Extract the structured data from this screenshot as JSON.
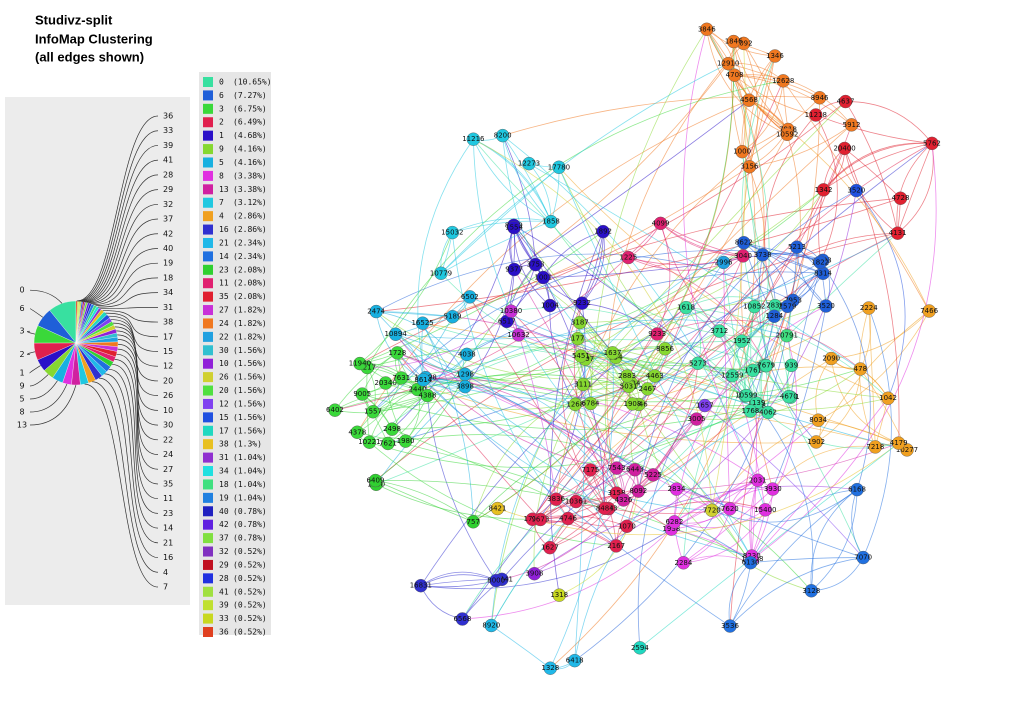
{
  "title": [
    "Studivz-split",
    "InfoMap Clustering",
    "(all edges shown)"
  ],
  "legend": [
    {
      "cluster": "0",
      "share": 10.65,
      "share_label": "(10.65%)",
      "color": "#38e0a0"
    },
    {
      "cluster": "6",
      "share": 7.27,
      "share_label": "(7.27%)",
      "color": "#1f5fd8"
    },
    {
      "cluster": "3",
      "share": 6.75,
      "share_label": "(6.75%)",
      "color": "#3ad83a"
    },
    {
      "cluster": "2",
      "share": 6.49,
      "share_label": "(6.49%)",
      "color": "#e0204e"
    },
    {
      "cluster": "1",
      "share": 4.68,
      "share_label": "(4.68%)",
      "color": "#2a10c8"
    },
    {
      "cluster": "9",
      "share": 4.16,
      "share_label": "(4.16%)",
      "color": "#86d830"
    },
    {
      "cluster": "5",
      "share": 4.16,
      "share_label": "(4.16%)",
      "color": "#18b0e0"
    },
    {
      "cluster": "8",
      "share": 3.38,
      "share_label": "(3.38%)",
      "color": "#e030e0"
    },
    {
      "cluster": "13",
      "share": 3.38,
      "share_label": "(3.38%)",
      "color": "#d020a0"
    },
    {
      "cluster": "7",
      "share": 3.12,
      "share_label": "(3.12%)",
      "color": "#20c8e0"
    },
    {
      "cluster": "4",
      "share": 2.86,
      "share_label": "(2.86%)",
      "color": "#f0a020"
    },
    {
      "cluster": "16",
      "share": 2.86,
      "share_label": "(2.86%)",
      "color": "#3030d0"
    },
    {
      "cluster": "21",
      "share": 2.34,
      "share_label": "(2.34%)",
      "color": "#20b8e8"
    },
    {
      "cluster": "14",
      "share": 2.34,
      "share_label": "(2.34%)",
      "color": "#2070e0"
    },
    {
      "cluster": "23",
      "share": 2.08,
      "share_label": "(2.08%)",
      "color": "#30d030"
    },
    {
      "cluster": "11",
      "share": 2.08,
      "share_label": "(2.08%)",
      "color": "#e02070"
    },
    {
      "cluster": "35",
      "share": 2.08,
      "share_label": "(2.08%)",
      "color": "#e02030"
    },
    {
      "cluster": "27",
      "share": 1.82,
      "share_label": "(1.82%)",
      "color": "#c830d8"
    },
    {
      "cluster": "24",
      "share": 1.82,
      "share_label": "(1.82%)",
      "color": "#f07820"
    },
    {
      "cluster": "22",
      "share": 1.82,
      "share_label": "(1.82%)",
      "color": "#20a0e0"
    },
    {
      "cluster": "30",
      "share": 1.56,
      "share_label": "(1.56%)",
      "color": "#30c0d0"
    },
    {
      "cluster": "10",
      "share": 1.56,
      "share_label": "(1.56%)",
      "color": "#9020d8"
    },
    {
      "cluster": "26",
      "share": 1.56,
      "share_label": "(1.56%)",
      "color": "#d0d030"
    },
    {
      "cluster": "20",
      "share": 1.56,
      "share_label": "(1.56%)",
      "color": "#50e040"
    },
    {
      "cluster": "12",
      "share": 1.56,
      "share_label": "(1.56%)",
      "color": "#8040f0"
    },
    {
      "cluster": "15",
      "share": 1.56,
      "share_label": "(1.56%)",
      "color": "#2050e0"
    },
    {
      "cluster": "17",
      "share": 1.56,
      "share_label": "(1.56%)",
      "color": "#20d8c0"
    },
    {
      "cluster": "38",
      "share": 1.3,
      "share_label": "(1.3%)",
      "color": "#e8c020"
    },
    {
      "cluster": "31",
      "share": 1.04,
      "share_label": "(1.04%)",
      "color": "#9030d0"
    },
    {
      "cluster": "34",
      "share": 1.04,
      "share_label": "(1.04%)",
      "color": "#20e0e0"
    },
    {
      "cluster": "18",
      "share": 1.04,
      "share_label": "(1.04%)",
      "color": "#40e080"
    },
    {
      "cluster": "19",
      "share": 1.04,
      "share_label": "(1.04%)",
      "color": "#2080e0"
    },
    {
      "cluster": "40",
      "share": 0.78,
      "share_label": "(0.78%)",
      "color": "#2020c0"
    },
    {
      "cluster": "42",
      "share": 0.78,
      "share_label": "(0.78%)",
      "color": "#6020e0"
    },
    {
      "cluster": "37",
      "share": 0.78,
      "share_label": "(0.78%)",
      "color": "#80e040"
    },
    {
      "cluster": "32",
      "share": 0.52,
      "share_label": "(0.52%)",
      "color": "#8030c0"
    },
    {
      "cluster": "29",
      "share": 0.52,
      "share_label": "(0.52%)",
      "color": "#c01020"
    },
    {
      "cluster": "28",
      "share": 0.52,
      "share_label": "(0.52%)",
      "color": "#2030e0"
    },
    {
      "cluster": "41",
      "share": 0.52,
      "share_label": "(0.52%)",
      "color": "#a0e040"
    },
    {
      "cluster": "39",
      "share": 0.52,
      "share_label": "(0.52%)",
      "color": "#c0e030"
    },
    {
      "cluster": "33",
      "share": 0.52,
      "share_label": "(0.52%)",
      "color": "#c8d820"
    },
    {
      "cluster": "36",
      "share": 0.52,
      "share_label": "(0.52%)",
      "color": "#e04020"
    }
  ],
  "nodes": [
    {
      "label": "3846",
      "cluster": "24"
    },
    {
      "label": "5912",
      "cluster": "24"
    },
    {
      "label": "12628",
      "cluster": "24"
    },
    {
      "label": "1346",
      "cluster": "24"
    },
    {
      "label": "7918",
      "cluster": "24"
    },
    {
      "label": "3092",
      "cluster": "24"
    },
    {
      "label": "8946",
      "cluster": "24"
    },
    {
      "label": "4708",
      "cluster": "24"
    },
    {
      "label": "4568",
      "cluster": "24"
    },
    {
      "label": "3156",
      "cluster": "24"
    },
    {
      "label": "1000",
      "cluster": "24"
    },
    {
      "label": "1846",
      "cluster": "24"
    },
    {
      "label": "12910",
      "cluster": "24"
    },
    {
      "label": "10592",
      "cluster": "24"
    },
    {
      "label": "1902",
      "cluster": "4"
    },
    {
      "label": "1042",
      "cluster": "4"
    },
    {
      "label": "10277",
      "cluster": "4"
    },
    {
      "label": "4179",
      "cluster": "4"
    },
    {
      "label": "7466",
      "cluster": "4"
    },
    {
      "label": "2090",
      "cluster": "4"
    },
    {
      "label": "2224",
      "cluster": "4"
    },
    {
      "label": "8034",
      "cluster": "4"
    },
    {
      "label": "478",
      "cluster": "4"
    },
    {
      "label": "7218",
      "cluster": "4"
    },
    {
      "label": "4728",
      "cluster": "35"
    },
    {
      "label": "20400",
      "cluster": "35"
    },
    {
      "label": "11218",
      "cluster": "35"
    },
    {
      "label": "5762",
      "cluster": "35"
    },
    {
      "label": "1342",
      "cluster": "35"
    },
    {
      "label": "4637",
      "cluster": "35"
    },
    {
      "label": "4131",
      "cluster": "35"
    },
    {
      "label": "883",
      "cluster": "0"
    },
    {
      "label": "4078",
      "cluster": "0"
    },
    {
      "label": "5273",
      "cluster": "0"
    },
    {
      "label": "1139",
      "cluster": "0"
    },
    {
      "label": "4351",
      "cluster": "0"
    },
    {
      "label": "1768",
      "cluster": "0"
    },
    {
      "label": "939",
      "cluster": "0"
    },
    {
      "label": "2836",
      "cluster": "0"
    },
    {
      "label": "1952",
      "cluster": "0"
    },
    {
      "label": "3340",
      "cluster": "0"
    },
    {
      "label": "4062",
      "cluster": "0"
    },
    {
      "label": "10599",
      "cluster": "0"
    },
    {
      "label": "12559",
      "cluster": "0"
    },
    {
      "label": "7679",
      "cluster": "0"
    },
    {
      "label": "3712",
      "cluster": "0"
    },
    {
      "label": "1618",
      "cluster": "0"
    },
    {
      "label": "4670",
      "cluster": "0"
    },
    {
      "label": "10852",
      "cluster": "0"
    },
    {
      "label": "1761",
      "cluster": "0"
    },
    {
      "label": "5446",
      "cluster": "9"
    },
    {
      "label": "6784",
      "cluster": "9"
    },
    {
      "label": "6024",
      "cluster": "9"
    },
    {
      "label": "5031",
      "cluster": "9"
    },
    {
      "label": "1268",
      "cluster": "9"
    },
    {
      "label": "934",
      "cluster": "9"
    },
    {
      "label": "177",
      "cluster": "9"
    },
    {
      "label": "3111",
      "cluster": "9"
    },
    {
      "label": "4463",
      "cluster": "9"
    },
    {
      "label": "1908",
      "cluster": "9"
    },
    {
      "label": "2883",
      "cluster": "9"
    },
    {
      "label": "8856",
      "cluster": "9"
    },
    {
      "label": "2097",
      "cluster": "9"
    },
    {
      "label": "2467",
      "cluster": "9"
    },
    {
      "label": "5451",
      "cluster": "9"
    },
    {
      "label": "1637",
      "cluster": "9"
    },
    {
      "label": "3187",
      "cluster": "9"
    },
    {
      "label": "1001",
      "cluster": "1"
    },
    {
      "label": "8610",
      "cluster": "1"
    },
    {
      "label": "1554",
      "cluster": "1"
    },
    {
      "label": "6517",
      "cluster": "1"
    },
    {
      "label": "1892",
      "cluster": "1"
    },
    {
      "label": "9377",
      "cluster": "1"
    },
    {
      "label": "1004",
      "cluster": "1"
    },
    {
      "label": "3753",
      "cluster": "1"
    },
    {
      "label": "9232",
      "cluster": "1"
    },
    {
      "label": "8314",
      "cluster": "6"
    },
    {
      "label": "9593",
      "cluster": "6"
    },
    {
      "label": "5213",
      "cluster": "6"
    },
    {
      "label": "7953",
      "cluster": "6"
    },
    {
      "label": "8622",
      "cluster": "6"
    },
    {
      "label": "3520",
      "cluster": "6"
    },
    {
      "label": "1822",
      "cluster": "6"
    },
    {
      "label": "1284",
      "cluster": "6"
    },
    {
      "label": "3738",
      "cluster": "6"
    },
    {
      "label": "2579",
      "cluster": "6"
    },
    {
      "label": "10221",
      "cluster": "3"
    },
    {
      "label": "20340",
      "cluster": "3"
    },
    {
      "label": "9005",
      "cluster": "3"
    },
    {
      "label": "4378",
      "cluster": "3"
    },
    {
      "label": "7621",
      "cluster": "3"
    },
    {
      "label": "2440",
      "cluster": "3"
    },
    {
      "label": "1557",
      "cluster": "3"
    },
    {
      "label": "4388",
      "cluster": "3"
    },
    {
      "label": "1728",
      "cluster": "3"
    },
    {
      "label": "7631",
      "cluster": "3"
    },
    {
      "label": "2498",
      "cluster": "3"
    },
    {
      "label": "6217",
      "cluster": "3"
    },
    {
      "label": "6402",
      "cluster": "3"
    },
    {
      "label": "1980",
      "cluster": "3"
    },
    {
      "label": "11940",
      "cluster": "3"
    },
    {
      "label": "1735",
      "cluster": "2"
    },
    {
      "label": "1070",
      "cluster": "2"
    },
    {
      "label": "2167",
      "cluster": "2"
    },
    {
      "label": "1627",
      "cluster": "2"
    },
    {
      "label": "3836",
      "cluster": "2"
    },
    {
      "label": "4746",
      "cluster": "2"
    },
    {
      "label": "3983",
      "cluster": "2"
    },
    {
      "label": "8484",
      "cluster": "2"
    },
    {
      "label": "7175",
      "cluster": "2"
    },
    {
      "label": "3158",
      "cluster": "2"
    },
    {
      "label": "9673",
      "cluster": "2"
    },
    {
      "label": "10361",
      "cluster": "2"
    },
    {
      "label": "16598",
      "cluster": "5"
    },
    {
      "label": "6502",
      "cluster": "5"
    },
    {
      "label": "2474",
      "cluster": "5"
    },
    {
      "label": "16525",
      "cluster": "5"
    },
    {
      "label": "1298",
      "cluster": "5"
    },
    {
      "label": "8614",
      "cluster": "5"
    },
    {
      "label": "10894",
      "cluster": "5"
    },
    {
      "label": "4038",
      "cluster": "5"
    },
    {
      "label": "5189",
      "cluster": "5"
    },
    {
      "label": "3898",
      "cluster": "5"
    },
    {
      "label": "2031",
      "cluster": "8"
    },
    {
      "label": "2284",
      "cluster": "8"
    },
    {
      "label": "2834",
      "cluster": "8"
    },
    {
      "label": "15400",
      "cluster": "8"
    },
    {
      "label": "7620",
      "cluster": "8"
    },
    {
      "label": "10498",
      "cluster": "8"
    },
    {
      "label": "1938",
      "cluster": "8"
    },
    {
      "label": "3930",
      "cluster": "8"
    },
    {
      "label": "6282",
      "cluster": "8"
    },
    {
      "label": "8230",
      "cluster": "8"
    },
    {
      "label": "6443",
      "cluster": "13"
    },
    {
      "label": "7543",
      "cluster": "13"
    },
    {
      "label": "5225",
      "cluster": "13"
    },
    {
      "label": "4326",
      "cluster": "13"
    },
    {
      "label": "8092",
      "cluster": "13"
    },
    {
      "label": "3005",
      "cluster": "13"
    },
    {
      "label": "15032",
      "cluster": "7"
    },
    {
      "label": "17780",
      "cluster": "7"
    },
    {
      "label": "1858",
      "cluster": "7"
    },
    {
      "label": "11216",
      "cluster": "7"
    },
    {
      "label": "10779",
      "cluster": "7"
    },
    {
      "label": "12273",
      "cluster": "7"
    },
    {
      "label": "8200",
      "cluster": "7"
    },
    {
      "label": "6568",
      "cluster": "16"
    },
    {
      "label": "13441",
      "cluster": "16"
    },
    {
      "label": "8000",
      "cluster": "16"
    },
    {
      "label": "16831",
      "cluster": "16"
    },
    {
      "label": "6168",
      "cluster": "14"
    },
    {
      "label": "3536",
      "cluster": "14"
    },
    {
      "label": "7070",
      "cluster": "14"
    },
    {
      "label": "3128",
      "cluster": "14"
    },
    {
      "label": "6130",
      "cluster": "14"
    },
    {
      "label": "1550",
      "cluster": "23"
    },
    {
      "label": "757",
      "cluster": "23"
    },
    {
      "label": "6409",
      "cluster": "23"
    },
    {
      "label": "4099",
      "cluster": "11"
    },
    {
      "label": "3040",
      "cluster": "11"
    },
    {
      "label": "1225",
      "cluster": "11"
    },
    {
      "label": "9233",
      "cluster": "11"
    },
    {
      "label": "10632",
      "cluster": "27"
    },
    {
      "label": "10380",
      "cluster": "27"
    },
    {
      "label": "6418",
      "cluster": "21"
    },
    {
      "label": "1328",
      "cluster": "21"
    },
    {
      "label": "8920",
      "cluster": "21"
    },
    {
      "label": "2996",
      "cluster": "22"
    },
    {
      "label": "7720",
      "cluster": "26"
    },
    {
      "label": "8421",
      "cluster": "38"
    },
    {
      "label": "3908",
      "cluster": "10"
    },
    {
      "label": "1657",
      "cluster": "12"
    },
    {
      "label": "2594",
      "cluster": "17"
    },
    {
      "label": "3520",
      "cluster": "15"
    },
    {
      "label": "20791",
      "cluster": "18"
    },
    {
      "label": "1318",
      "cluster": "33"
    }
  ]
}
